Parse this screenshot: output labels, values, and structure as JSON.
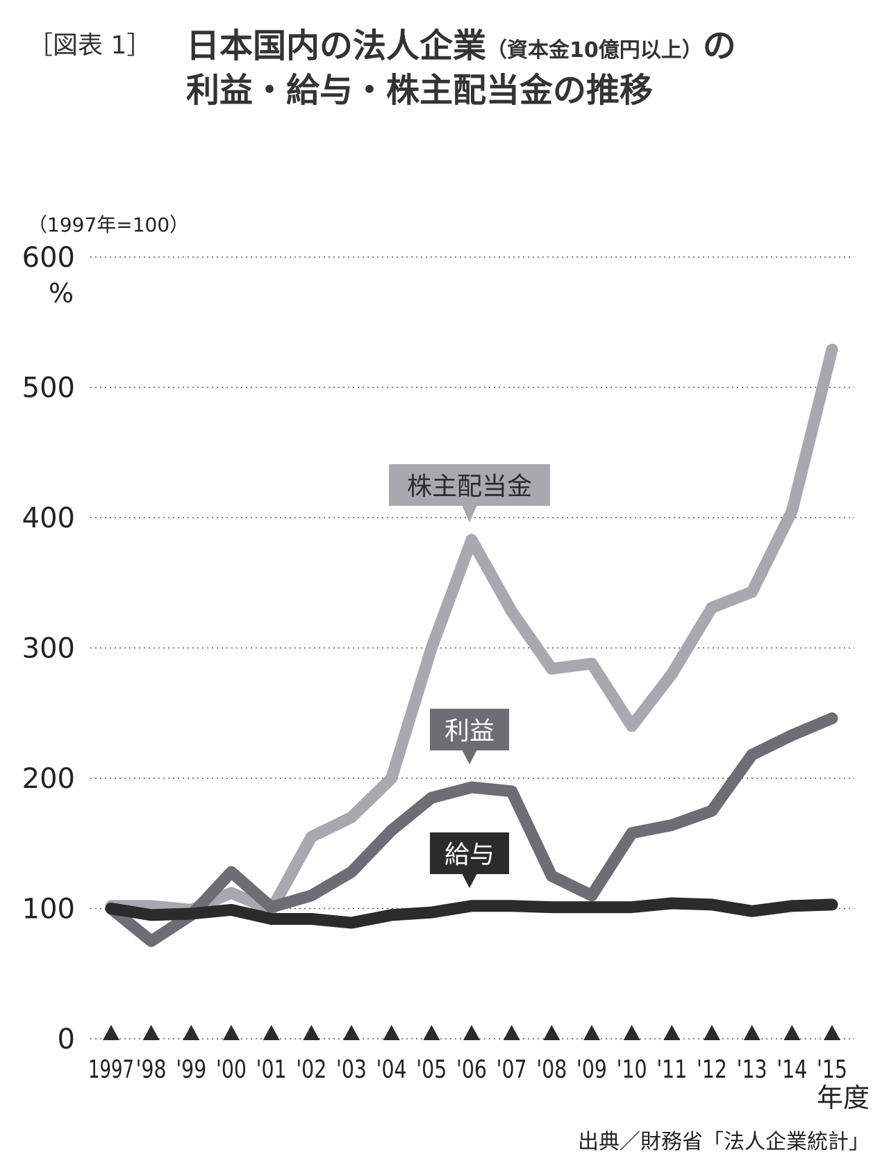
{
  "figure": {
    "label": "［図表 1］",
    "title_main_1": "日本国内の法人企業",
    "title_small": "（資本金10億円以上）",
    "title_main_1b": "の",
    "title_line2": "利益・給与・株主配当金の推移",
    "source": "出典／財務省「法人企業統計」"
  },
  "colors": {
    "dividend": "#a7a9ac",
    "profit": "#6d6e71",
    "salary": "#2b2b2b",
    "grid": "#555555",
    "text": "#222222"
  },
  "chart_data": {
    "type": "line",
    "base_note": "（1997年=100）",
    "unit": "%",
    "xlabel": "年度",
    "ylim": [
      0,
      600
    ],
    "yticks": [
      "0",
      "100",
      "200",
      "300",
      "400",
      "500",
      "600"
    ],
    "grid": "dotted-horizontal",
    "categories": [
      "1997",
      "'98",
      "'99",
      "'00",
      "'01",
      "'02",
      "'03",
      "'04",
      "'05",
      "'06",
      "'07",
      "'08",
      "'09",
      "'10",
      "'11",
      "'12",
      "'13",
      "'14",
      "'15"
    ],
    "series": [
      {
        "name": "株主配当金",
        "key": "dividend",
        "values": [
          102,
          102,
          99,
          112,
          99,
          155,
          170,
          200,
          300,
          383,
          328,
          284,
          288,
          240,
          280,
          331,
          343,
          405,
          529
        ]
      },
      {
        "name": "利益",
        "key": "profit",
        "values": [
          100,
          75,
          95,
          128,
          101,
          110,
          128,
          160,
          185,
          193,
          190,
          125,
          110,
          158,
          164,
          175,
          218,
          233,
          246
        ]
      },
      {
        "name": "給与",
        "key": "salary",
        "values": [
          100,
          95,
          96,
          99,
          92,
          92,
          89,
          95,
          97,
          102,
          102,
          101,
          101,
          101,
          104,
          103,
          98,
          102,
          103
        ]
      }
    ],
    "callouts": [
      {
        "series": "dividend",
        "text": "株主配当金",
        "at_index": 9
      },
      {
        "series": "profit",
        "text": "利益",
        "at_index": 9
      },
      {
        "series": "salary",
        "text": "給与",
        "at_index": 9
      }
    ]
  }
}
